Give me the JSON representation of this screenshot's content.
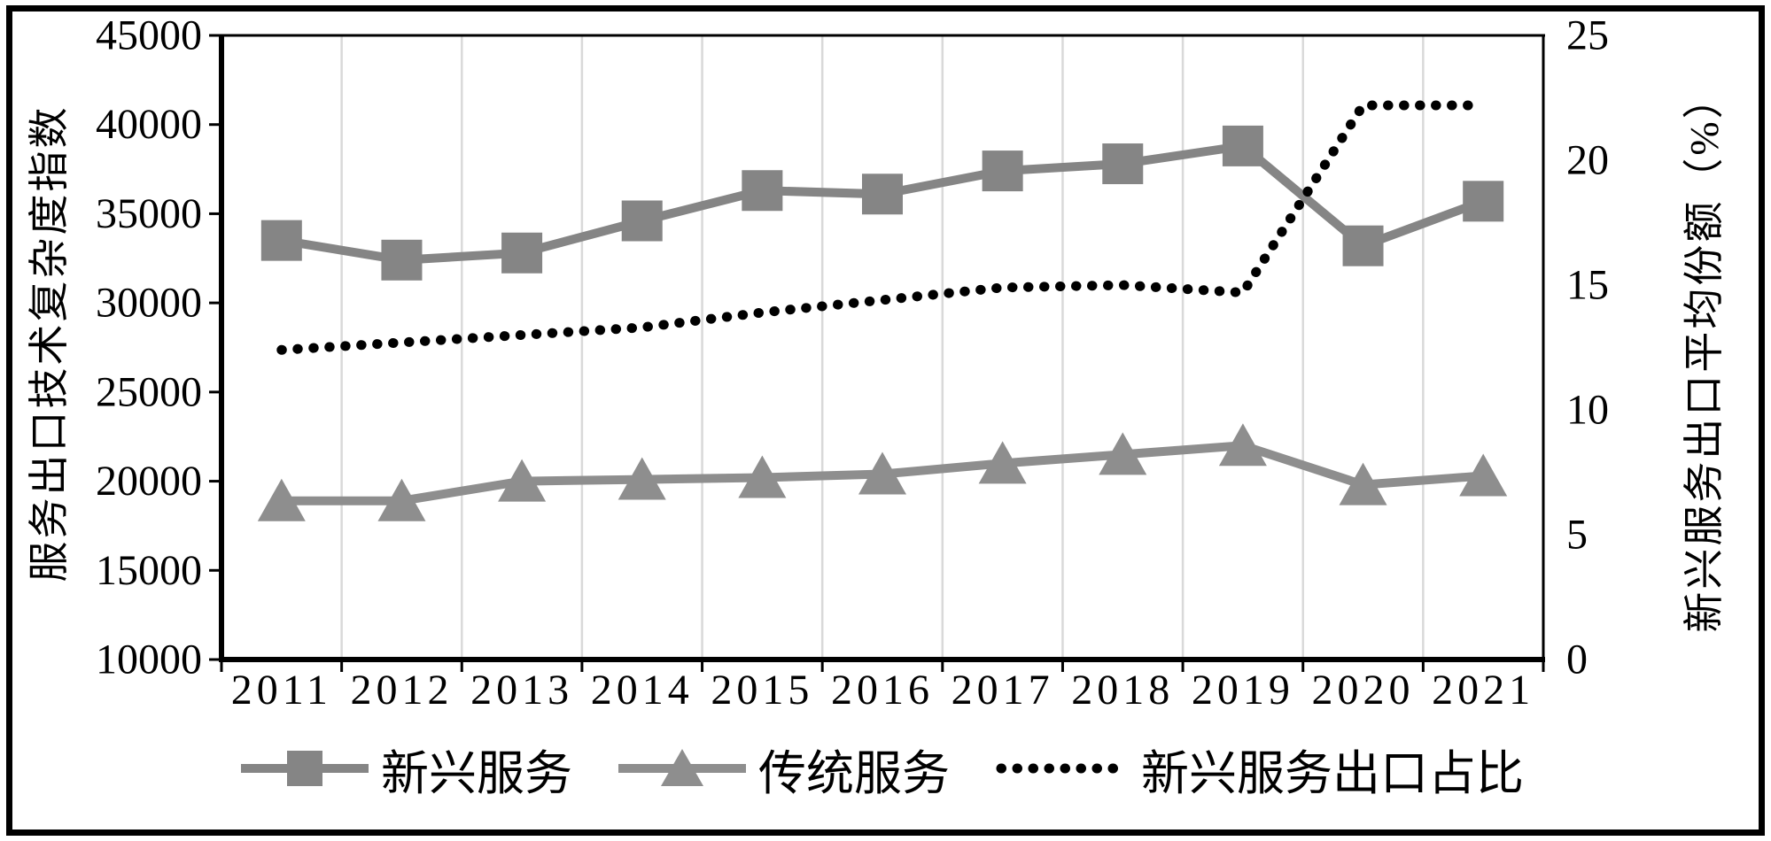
{
  "figure": {
    "background": "#ffffff",
    "border_color": "#000000",
    "gridline_color": "#d9d9d9",
    "axis_color": "#000000"
  },
  "chart_data": {
    "type": "line",
    "categories": [
      "2011",
      "2012",
      "2013",
      "2014",
      "2015",
      "2016",
      "2017",
      "2018",
      "2019",
      "2020",
      "2021"
    ],
    "series": [
      {
        "name": "新兴服务",
        "axis": "left",
        "marker": "square",
        "line_style": "solid",
        "color": "#858585",
        "values": [
          33500,
          32400,
          32800,
          34600,
          36300,
          36100,
          37400,
          37800,
          38800,
          33200,
          35700
        ]
      },
      {
        "name": "传统服务",
        "axis": "left",
        "marker": "triangle",
        "line_style": "solid",
        "color": "#8e8e8e",
        "values": [
          18900,
          18900,
          20000,
          20100,
          20200,
          20400,
          21000,
          21500,
          22000,
          19800,
          20300
        ]
      },
      {
        "name": "新兴服务出口占比",
        "axis": "right",
        "marker": "none",
        "line_style": "dotted",
        "color": "#000000",
        "values": [
          12.4,
          12.7,
          13.0,
          13.3,
          13.9,
          14.4,
          14.9,
          15.0,
          14.7,
          22.2,
          22.2
        ]
      }
    ],
    "left_axis": {
      "title": "服务出口技术复杂度指数",
      "min": 10000,
      "max": 45000,
      "step": 5000,
      "tick_labels": [
        "45000",
        "40000",
        "35000",
        "30000",
        "25000",
        "20000",
        "15000",
        "10000"
      ]
    },
    "right_axis": {
      "title": "新兴服务出口平均份额（%）",
      "min": 0,
      "max": 25,
      "step": 5,
      "tick_labels": [
        "25",
        "20",
        "15",
        "10",
        "5",
        "0"
      ]
    },
    "grid": "vertical",
    "legend_position": "bottom"
  }
}
